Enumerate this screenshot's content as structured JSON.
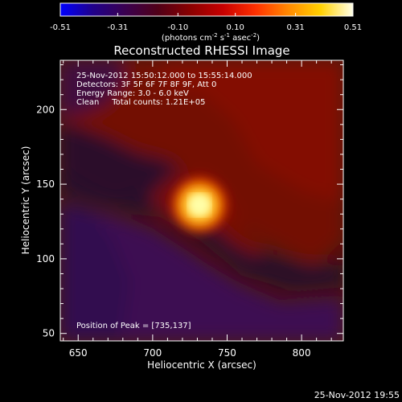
{
  "chart_data": {
    "type": "heatmap",
    "title": "Reconstructed RHESSI Image",
    "xlabel": "Heliocentric X (arcsec)",
    "ylabel": "Heliocentric Y (arcsec)",
    "xlim": [
      638,
      828
    ],
    "ylim": [
      45,
      233
    ],
    "xticks": [
      650,
      700,
      750,
      800
    ],
    "yticks": [
      50,
      100,
      150,
      200
    ],
    "colorbar": {
      "range": [
        -0.51,
        0.51
      ],
      "ticks": [
        "-0.51",
        "-0.31",
        "-0.10",
        "0.10",
        "0.31",
        "0.51"
      ],
      "tick_values": [
        -0.51,
        -0.31,
        -0.1,
        0.1,
        0.31,
        0.51
      ],
      "units_prefix": "(photons cm",
      "units_sup1": "-2",
      "units_mid": " s",
      "units_sup2": "-1",
      "units_mid2": " asec",
      "units_sup3": "-2",
      "units_suffix": ")"
    },
    "annotations": [
      "25-Nov-2012 15:50:12.000 to 15:55:14.000",
      "Detectors: 3F 5F 6F 7F 8F 9F, Att 0",
      "Energy Range: 3.0 - 6.0 keV",
      "Clean     Total counts: 1.21E+05"
    ],
    "peak_label": "Position of Peak = [735,137]",
    "peak": {
      "x": 735,
      "y": 137
    },
    "timestamp": "25-Nov-2012 19:55",
    "colormap_stops": [
      "#0000ff",
      "#20008a",
      "#3a0050",
      "#500018",
      "#8a0000",
      "#c80000",
      "#ff3000",
      "#ff8800",
      "#ffd000",
      "#ffffe8"
    ]
  }
}
